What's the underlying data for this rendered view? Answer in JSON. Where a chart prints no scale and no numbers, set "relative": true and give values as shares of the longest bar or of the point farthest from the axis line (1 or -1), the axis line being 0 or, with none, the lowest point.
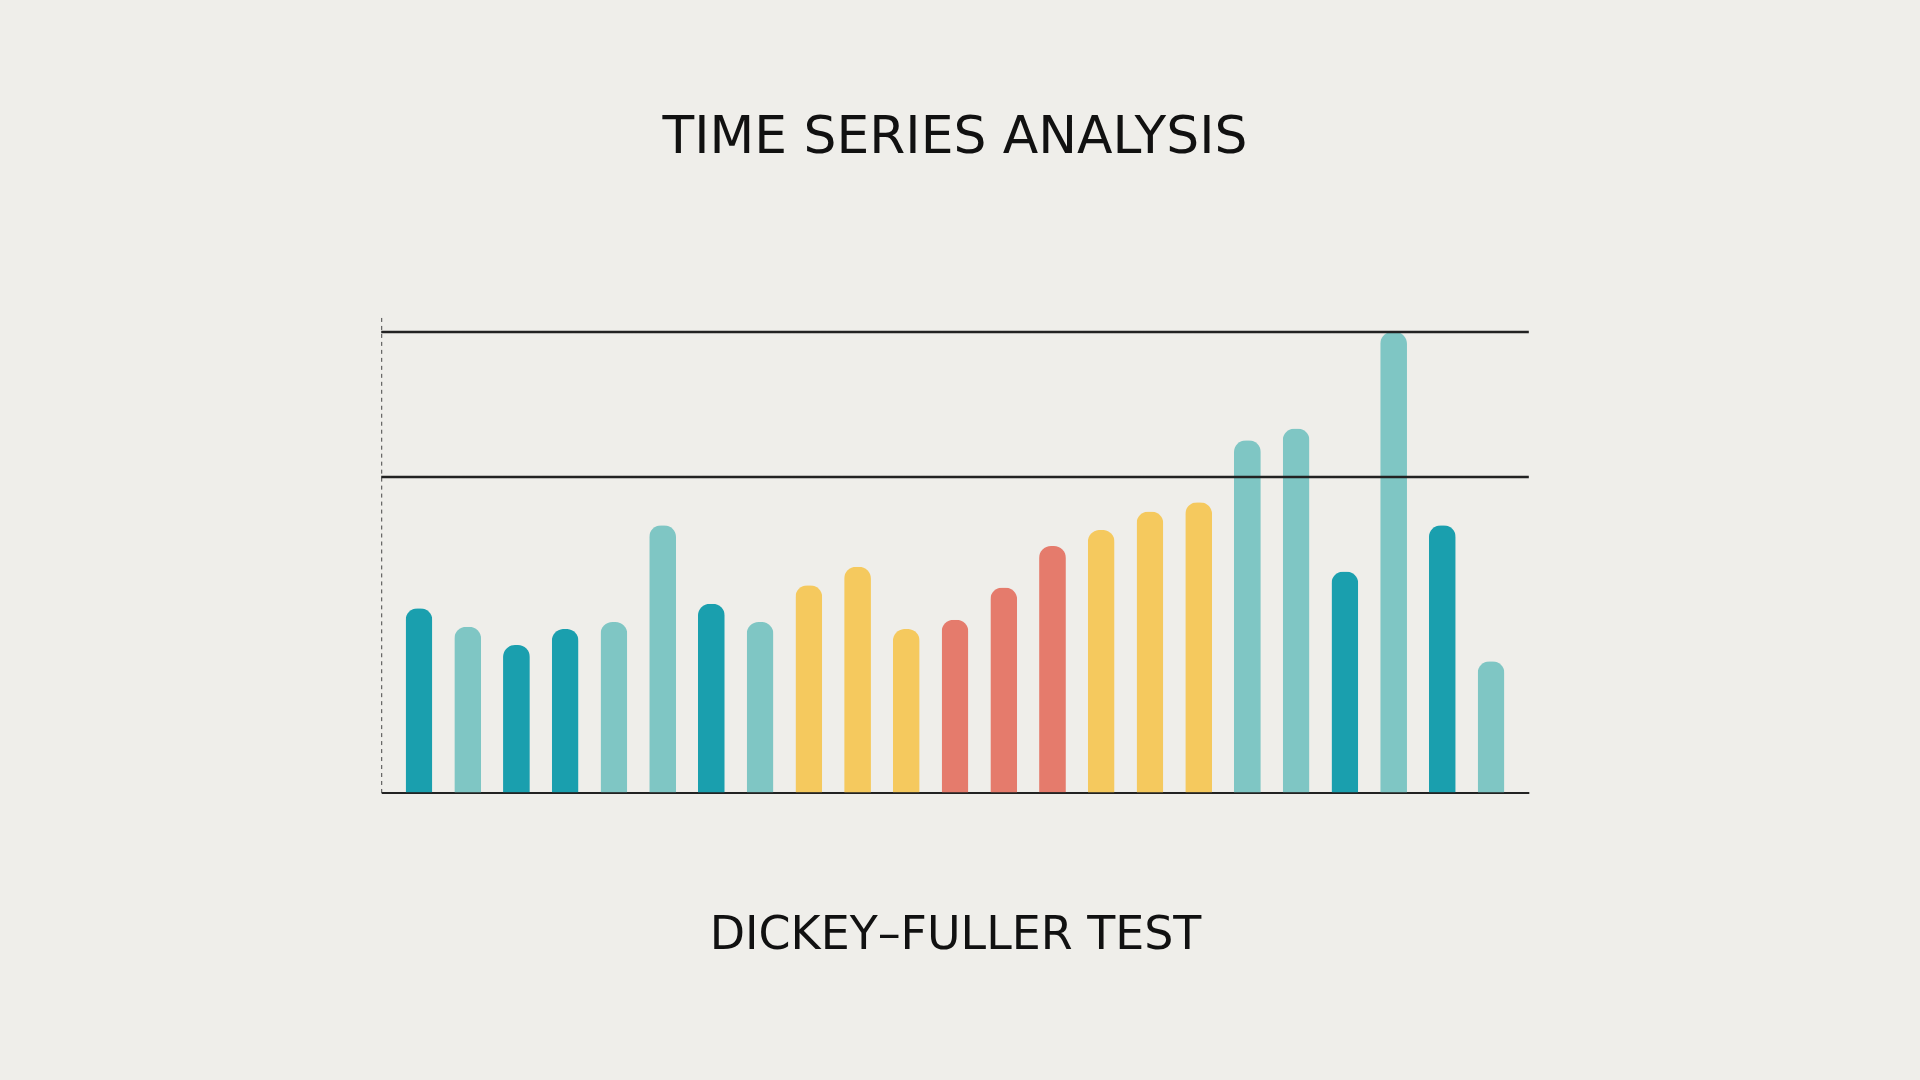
{
  "chart_data": {
    "type": "bar",
    "title": "TIME SERIES ANALYSIS",
    "xlabel": "DICKEY–FULLER TEST",
    "relative": true,
    "tick_labels": false,
    "grid": false,
    "categories": [
      null,
      null,
      null,
      null,
      null,
      null,
      null,
      null,
      null,
      null,
      null,
      null,
      null,
      null,
      null,
      null,
      null,
      null,
      null,
      null,
      null,
      null,
      null
    ],
    "values": [
      0.4,
      0.36,
      0.32,
      0.355,
      0.37,
      0.58,
      0.41,
      0.37,
      0.45,
      0.49,
      0.355,
      0.375,
      0.445,
      0.535,
      0.57,
      0.61,
      0.63,
      0.765,
      0.79,
      0.48,
      1.0,
      0.58,
      0.285
    ],
    "colors": [
      "#1a9fae",
      "#7fc6c4",
      "#1a9fae",
      "#1a9fae",
      "#7fc6c4",
      "#7fc6c4",
      "#1a9fae",
      "#7fc6c4",
      "#f5c95e",
      "#f5c95e",
      "#f5c95e",
      "#e57b6c",
      "#e57b6c",
      "#e57b6c",
      "#f5c95e",
      "#f5c95e",
      "#f5c95e",
      "#7fc6c4",
      "#7fc6c4",
      "#1a9fae",
      "#7fc6c4",
      "#1a9fae",
      "#7fc6c4"
    ],
    "ref_lines": [
      {
        "axis": "y",
        "value": 1.0,
        "color": "#222222"
      },
      {
        "axis": "y",
        "value": 0.685,
        "color": "#222222"
      }
    ]
  }
}
